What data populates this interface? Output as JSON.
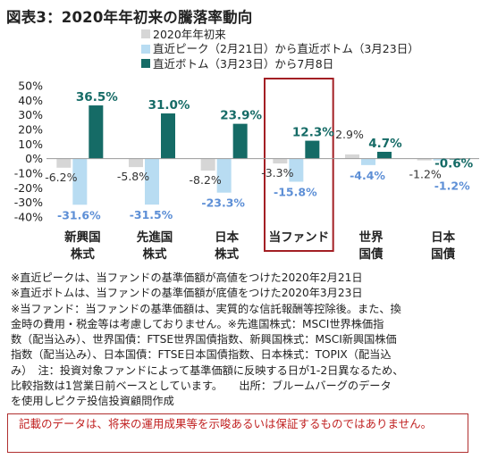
{
  "title": "図表3：2020年年初来の騰落率動向",
  "colors": {
    "series1": "#d6d6d6",
    "series2": "#b8dcf2",
    "series3": "#156b66",
    "highlight_border": "#a31f24",
    "label_dark": "#333333",
    "label_teal": "#156b66",
    "label_blue": "#5d8fd6"
  },
  "chart_data": {
    "type": "bar",
    "categories": [
      {
        "line1": "新興国",
        "line2": "株式"
      },
      {
        "line1": "先進国",
        "line2": "株式"
      },
      {
        "line1": "日本",
        "line2": "株式"
      },
      {
        "line1": "当ファンド",
        "line2": ""
      },
      {
        "line1": "世界",
        "line2": "国債"
      },
      {
        "line1": "日本",
        "line2": "国債"
      }
    ],
    "series": [
      {
        "name": "2020年年初来",
        "values": [
          -6.2,
          -5.8,
          -8.2,
          -3.3,
          2.9,
          -1.2
        ],
        "labels": [
          "-6.2%",
          "-5.8%",
          "-8.2%",
          "-3.3%",
          "2.9%",
          "-1.2%"
        ]
      },
      {
        "name": "直近ピーク（2月21日）から直近ボトム（3月23日）",
        "values": [
          -31.6,
          -31.5,
          -23.3,
          -15.8,
          -4.4,
          -1.2
        ],
        "labels": [
          "-31.6%",
          "-31.5%",
          "-23.3%",
          "-15.8%",
          "-4.4%",
          "-1.2%"
        ]
      },
      {
        "name": "直近ボトム（3月23日）から7月8日",
        "values": [
          36.5,
          31.0,
          23.9,
          12.3,
          4.7,
          -0.6
        ],
        "labels": [
          "36.5%",
          "31.0%",
          "23.9%",
          "12.3%",
          "4.7%",
          "-0.6%"
        ]
      }
    ],
    "y_ticks": [
      "50%",
      "40%",
      "30%",
      "20%",
      "10%",
      "0%",
      "-10%",
      "-20%",
      "-30%",
      "-40%"
    ],
    "ylim": [
      -40,
      50
    ],
    "highlight_category": 3
  },
  "notes": [
    "※直近ピークは、当ファンドの基準価額が高値をつけた2020年2月21日",
    "※直近ボトムは、当ファンドの基準価額が底値をつけた2020年3月23日",
    "※当ファンド：当ファンドの基準価額は、実質的な信託報酬等控除後。また、換",
    "金時の費用・税金等は考慮しておりません。※先進国株式：MSCI世界株価指",
    "数（配当込み）、世界国債：FTSE世界国債指数、新興国株式：MSCI新興国株価",
    "指数（配当込み）、日本国債：FTSE日本国債指数、日本株式：TOPIX（配当込",
    "み）　注：投資対象ファンドによって基準価額に反映する日が1-2日異なるため、",
    "比較指数は1営業日前ベースとしています。　　出所：ブルームバーグのデータ",
    "を使用しピクテ投信投資顧問作成"
  ],
  "disclaimer": "記載のデータは、将来の運用成果等を示唆あるいは保証するものではありません。"
}
